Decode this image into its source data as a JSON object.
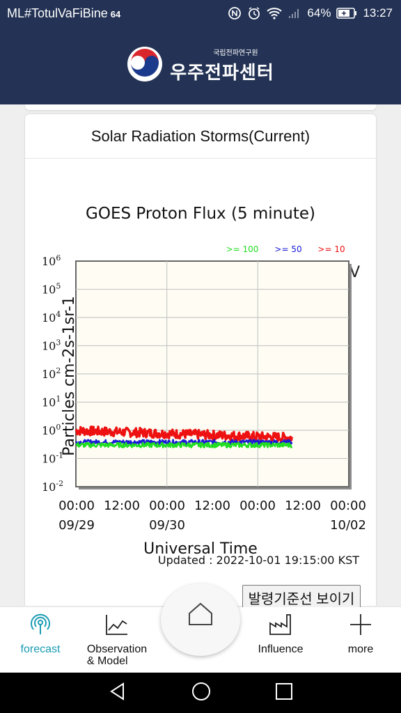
{
  "status_bar": {
    "carrier": "ML#TotulVaFiBine",
    "network": "64",
    "battery_level": "64%",
    "time": "13:27",
    "icons": [
      "nfc-icon",
      "alarm-icon",
      "wifi-icon",
      "signal-icon",
      "battery-icon"
    ]
  },
  "header": {
    "logo_subtitle": "국립전파연구원",
    "logo_title": "우주전파센터"
  },
  "card": {
    "title": "Solar Radiation Storms(Current)"
  },
  "chart_data": {
    "type": "line",
    "title": "GOES Proton Flux (5 minute)",
    "ylabel": "Particles cm-2s-1sr-1",
    "xlabel": "Universal Time",
    "y_scale": "log",
    "ylim": [
      0.01,
      1000000
    ],
    "y_ticks": [
      {
        "base": "10",
        "exp": "6"
      },
      {
        "base": "10",
        "exp": "5"
      },
      {
        "base": "10",
        "exp": "4"
      },
      {
        "base": "10",
        "exp": "3"
      },
      {
        "base": "10",
        "exp": "2"
      },
      {
        "base": "10",
        "exp": "1"
      },
      {
        "base": "10",
        "exp": "0"
      },
      {
        "base": "10",
        "exp": "-1"
      },
      {
        "base": "10",
        "exp": "-2"
      }
    ],
    "x_ticks": [
      {
        "time": "00:00",
        "date": "09/29"
      },
      {
        "time": "12:00",
        "date": ""
      },
      {
        "time": "00:00",
        "date": "09/30"
      },
      {
        "time": "12:00",
        "date": ""
      },
      {
        "time": "00:00",
        "date": ""
      },
      {
        "time": "12:00",
        "date": ""
      },
      {
        "time": "00:00",
        "date": "10/02"
      }
    ],
    "legend": [
      {
        "label": ">= 100",
        "color": "#22dd22"
      },
      {
        "label": ">= 50",
        "color": "#1a1ad6"
      },
      {
        "label": ">= 10",
        "color": "#ee1111"
      }
    ],
    "legend_suffix": "V",
    "legend_position": "top-right",
    "grid": true,
    "plot_background": "#fffdf3",
    "series": [
      {
        "name": ">= 10",
        "color": "#ee1111",
        "start_hours": 0,
        "end_hours": 57,
        "level": 0.55
      },
      {
        "name": ">= 50",
        "color": "#1a1ad6",
        "start_hours": 0,
        "end_hours": 57,
        "level": 0.38
      },
      {
        "name": ">= 100",
        "color": "#22dd22",
        "start_hours": 0,
        "end_hours": 57,
        "level": 0.3
      }
    ],
    "x_range_hours": [
      0,
      72
    ],
    "updated": "Updated : 2022-10-01 19:15:00 KST"
  },
  "toggle_button": {
    "label": "발령기준선 보이기"
  },
  "bottom_nav": {
    "items": [
      {
        "label": "forecast",
        "icon": "broadcast-icon"
      },
      {
        "label": "Observation\n& Model",
        "icon": "line-graph-icon"
      },
      {
        "label": "Influence",
        "icon": "factory-icon"
      },
      {
        "label": "more",
        "icon": "plus-icon"
      }
    ],
    "home_icon": "home-icon"
  },
  "colors": {
    "header_bg": "#243355",
    "accent": "#1a9bb3"
  }
}
